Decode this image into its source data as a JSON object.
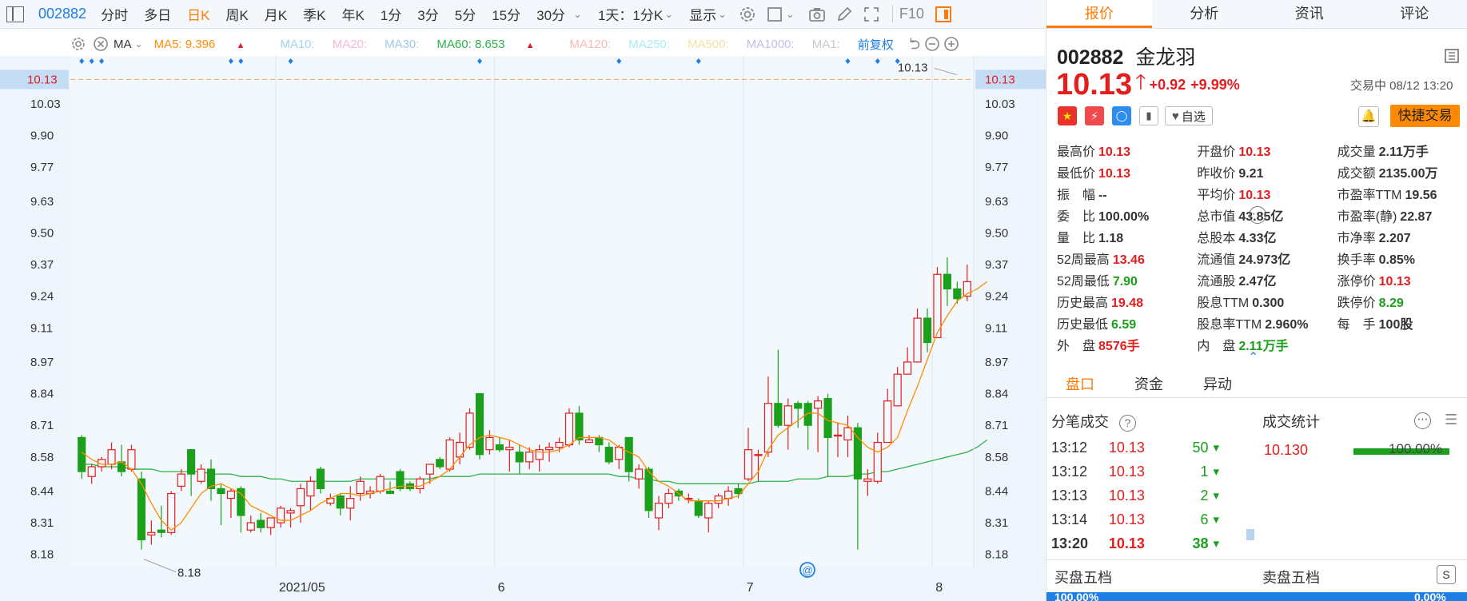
{
  "toolbar": {
    "code": "002882",
    "tabs": [
      "分时",
      "多日",
      "日K",
      "周K",
      "月K",
      "季K",
      "年K",
      "1分",
      "3分",
      "5分",
      "15分",
      "30分"
    ],
    "active_tab": "日K",
    "period_select": "1天：1分K",
    "display": "显示",
    "f10": "F10"
  },
  "ma_bar": {
    "type": "MA",
    "ma5": "MA5: 9.396",
    "ma10": "MA10:",
    "ma20": "MA20:",
    "ma30": "MA30:",
    "ma60": "MA60: 8.653",
    "ma120": "MA120:",
    "ma250": "MA250:",
    "ma500": "MA500:",
    "ma1000": "MA1000:",
    "ma1": "MA1:",
    "adjust": "前复权"
  },
  "chart_data": {
    "type": "candlestick",
    "title": "",
    "ylim": [
      8.12,
      10.22
    ],
    "y_ticks": [
      "10.13",
      "10.03",
      "9.90",
      "9.77",
      "9.63",
      "9.50",
      "9.37",
      "9.24",
      "9.11",
      "8.97",
      "8.84",
      "8.71",
      "8.58",
      "8.44",
      "8.31",
      "8.18"
    ],
    "x_labels": [
      "2021/05",
      "6",
      "7",
      "8"
    ],
    "last_price": "10.13",
    "high_label": "10.13",
    "low_label": "8.18",
    "candles": [
      [
        8.66,
        8.52,
        8.67,
        8.49
      ],
      [
        8.5,
        8.54,
        8.55,
        8.47
      ],
      [
        8.54,
        8.57,
        8.58,
        8.52
      ],
      [
        8.55,
        8.61,
        8.64,
        8.53
      ],
      [
        8.56,
        8.52,
        8.63,
        8.5
      ],
      [
        8.53,
        8.61,
        8.63,
        8.52
      ],
      [
        8.49,
        8.24,
        8.52,
        8.2
      ],
      [
        8.26,
        8.27,
        8.32,
        8.22
      ],
      [
        8.28,
        8.27,
        8.38,
        8.25
      ],
      [
        8.27,
        8.43,
        8.44,
        8.26
      ],
      [
        8.46,
        8.51,
        8.53,
        8.44
      ],
      [
        8.61,
        8.51,
        8.61,
        8.42
      ],
      [
        8.48,
        8.53,
        8.55,
        8.47
      ],
      [
        8.53,
        8.45,
        8.57,
        8.4
      ],
      [
        8.45,
        8.43,
        8.47,
        8.3
      ],
      [
        8.41,
        8.44,
        8.45,
        8.33
      ],
      [
        8.45,
        8.34,
        8.46,
        8.27
      ],
      [
        8.28,
        8.31,
        8.34,
        8.27
      ],
      [
        8.32,
        8.29,
        8.35,
        8.27
      ],
      [
        8.29,
        8.33,
        8.33,
        8.26
      ],
      [
        8.31,
        8.37,
        8.38,
        8.29
      ],
      [
        8.35,
        8.36,
        8.37,
        8.29
      ],
      [
        8.38,
        8.45,
        8.47,
        8.31
      ],
      [
        8.42,
        8.48,
        8.5,
        8.36
      ],
      [
        8.53,
        8.45,
        8.54,
        8.43
      ],
      [
        8.39,
        8.41,
        8.43,
        8.38
      ],
      [
        8.42,
        8.37,
        8.43,
        8.34
      ],
      [
        8.37,
        8.41,
        8.46,
        8.32
      ],
      [
        8.43,
        8.48,
        8.5,
        8.4
      ],
      [
        8.43,
        8.44,
        8.46,
        8.41
      ],
      [
        8.44,
        8.5,
        8.51,
        8.43
      ],
      [
        8.44,
        8.43,
        8.48,
        8.43
      ],
      [
        8.52,
        8.45,
        8.53,
        8.44
      ],
      [
        8.47,
        8.45,
        8.48,
        8.44
      ],
      [
        8.45,
        8.49,
        8.5,
        8.43
      ],
      [
        8.51,
        8.55,
        8.55,
        8.47
      ],
      [
        8.57,
        8.54,
        8.58,
        8.53
      ],
      [
        8.53,
        8.65,
        8.66,
        8.52
      ],
      [
        8.58,
        8.64,
        8.68,
        8.55
      ],
      [
        8.62,
        8.76,
        8.78,
        8.61
      ],
      [
        8.84,
        8.59,
        8.84,
        8.57
      ],
      [
        8.61,
        8.66,
        8.69,
        8.59
      ],
      [
        8.63,
        8.61,
        8.66,
        8.6
      ],
      [
        8.61,
        8.62,
        8.65,
        8.52
      ],
      [
        8.6,
        8.56,
        8.63,
        8.51
      ],
      [
        8.56,
        8.6,
        8.62,
        8.53
      ],
      [
        8.57,
        8.61,
        8.63,
        8.52
      ],
      [
        8.61,
        8.62,
        8.64,
        8.56
      ],
      [
        8.62,
        8.64,
        8.66,
        8.6
      ],
      [
        8.63,
        8.76,
        8.78,
        8.62
      ],
      [
        8.76,
        8.65,
        8.79,
        8.63
      ],
      [
        8.64,
        8.65,
        8.67,
        8.64
      ],
      [
        8.66,
        8.63,
        8.67,
        8.6
      ],
      [
        8.62,
        8.56,
        8.64,
        8.55
      ],
      [
        8.57,
        8.62,
        8.63,
        8.53
      ],
      [
        8.66,
        8.52,
        8.66,
        8.48
      ],
      [
        8.49,
        8.53,
        8.55,
        8.45
      ],
      [
        8.53,
        8.36,
        8.54,
        8.33
      ],
      [
        8.33,
        8.39,
        8.42,
        8.28
      ],
      [
        8.39,
        8.43,
        8.45,
        8.37
      ],
      [
        8.44,
        8.42,
        8.45,
        8.4
      ],
      [
        8.41,
        8.41,
        8.43,
        8.39
      ],
      [
        8.4,
        8.34,
        8.41,
        8.33
      ],
      [
        8.33,
        8.39,
        8.4,
        8.27
      ],
      [
        8.39,
        8.42,
        8.43,
        8.37
      ],
      [
        8.41,
        8.44,
        8.46,
        8.38
      ],
      [
        8.45,
        8.43,
        8.47,
        8.41
      ],
      [
        8.49,
        8.61,
        8.7,
        8.48
      ],
      [
        8.59,
        8.59,
        8.61,
        8.48
      ],
      [
        8.6,
        8.8,
        8.91,
        8.58
      ],
      [
        8.8,
        8.71,
        9.02,
        8.7
      ],
      [
        8.71,
        8.79,
        8.82,
        8.61
      ],
      [
        8.8,
        8.78,
        8.81,
        8.7
      ],
      [
        8.8,
        8.71,
        8.81,
        8.61
      ],
      [
        8.78,
        8.81,
        8.83,
        8.6
      ],
      [
        8.82,
        8.66,
        8.84,
        8.5
      ],
      [
        8.67,
        8.67,
        8.72,
        8.58
      ],
      [
        8.65,
        8.7,
        8.75,
        8.58
      ],
      [
        8.7,
        8.49,
        8.72,
        8.2
      ],
      [
        8.48,
        8.49,
        8.53,
        8.42
      ],
      [
        8.48,
        8.64,
        8.68,
        8.47
      ],
      [
        8.64,
        8.81,
        8.86,
        8.64
      ],
      [
        8.79,
        8.92,
        8.95,
        8.79
      ],
      [
        8.92,
        8.97,
        9.03,
        8.92
      ],
      [
        8.97,
        9.15,
        9.19,
        8.97
      ],
      [
        9.15,
        9.05,
        9.19,
        9.01
      ],
      [
        9.07,
        9.33,
        9.36,
        9.07
      ],
      [
        9.33,
        9.27,
        9.4,
        9.2
      ],
      [
        9.27,
        9.23,
        9.3,
        9.21
      ],
      [
        9.24,
        9.3,
        9.37,
        9.22
      ]
    ],
    "ma5": [
      8.6,
      8.57,
      8.55,
      8.55,
      8.56,
      8.53,
      8.47,
      8.39,
      8.32,
      8.28,
      8.31,
      8.37,
      8.43,
      8.46,
      8.47,
      8.45,
      8.43,
      8.38,
      8.36,
      8.34,
      8.32,
      8.32,
      8.34,
      8.36,
      8.39,
      8.41,
      8.43,
      8.43,
      8.42,
      8.43,
      8.44,
      8.45,
      8.46,
      8.46,
      8.46,
      8.48,
      8.5,
      8.53,
      8.58,
      8.63,
      8.66,
      8.67,
      8.66,
      8.65,
      8.63,
      8.61,
      8.6,
      8.6,
      8.61,
      8.63,
      8.66,
      8.66,
      8.66,
      8.65,
      8.62,
      8.6,
      8.58,
      8.52,
      8.48,
      8.46,
      8.43,
      8.4,
      8.4,
      8.4,
      8.4,
      8.41,
      8.42,
      8.47,
      8.52,
      8.61,
      8.67,
      8.7,
      8.73,
      8.76,
      8.76,
      8.73,
      8.72,
      8.71,
      8.66,
      8.62,
      8.6,
      8.62,
      8.66,
      8.77,
      8.87,
      8.98,
      9.09,
      9.16,
      9.22,
      9.25,
      9.27,
      9.3
    ],
    "ma60": [
      8.55,
      8.55,
      8.54,
      8.54,
      8.54,
      8.53,
      8.53,
      8.53,
      8.52,
      8.52,
      8.52,
      8.52,
      8.52,
      8.51,
      8.51,
      8.51,
      8.5,
      8.5,
      8.5,
      8.49,
      8.49,
      8.48,
      8.48,
      8.48,
      8.48,
      8.48,
      8.48,
      8.48,
      8.49,
      8.49,
      8.49,
      8.49,
      8.49,
      8.49,
      8.49,
      8.49,
      8.5,
      8.5,
      8.5,
      8.5,
      8.51,
      8.51,
      8.51,
      8.51,
      8.51,
      8.51,
      8.51,
      8.51,
      8.51,
      8.51,
      8.51,
      8.51,
      8.51,
      8.51,
      8.5,
      8.5,
      8.49,
      8.49,
      8.48,
      8.48,
      8.47,
      8.47,
      8.47,
      8.47,
      8.47,
      8.47,
      8.47,
      8.47,
      8.48,
      8.48,
      8.48,
      8.48,
      8.49,
      8.49,
      8.49,
      8.5,
      8.5,
      8.5,
      8.51,
      8.51,
      8.52,
      8.52,
      8.53,
      8.54,
      8.55,
      8.56,
      8.57,
      8.58,
      8.59,
      8.6,
      8.62,
      8.65
    ]
  },
  "quote": {
    "code": "002882",
    "name": "金龙羽",
    "price": "10.13",
    "change": "+0.92",
    "change_pct": "+9.99%",
    "status": "交易中 08/12 13:20",
    "watch_label": "自选",
    "quick_trade": "快捷交易",
    "grid": [
      [
        [
          "最高价",
          "10.13",
          "red"
        ],
        [
          "开盘价",
          "10.13",
          "red"
        ],
        [
          "成交量",
          "2.11万手",
          ""
        ]
      ],
      [
        [
          "最低价",
          "10.13",
          "red"
        ],
        [
          "昨收价",
          "9.21",
          ""
        ],
        [
          "成交额",
          "2135.00万",
          ""
        ]
      ],
      [
        [
          "振　幅",
          "--",
          ""
        ],
        [
          "平均价",
          "10.13",
          "red"
        ],
        [
          "市盈率TTM",
          "19.56",
          ""
        ]
      ],
      [
        [
          "委　比",
          "100.00%",
          ""
        ],
        [
          "总市值",
          "43.85亿",
          ""
        ],
        [
          "市盈率(静)",
          "22.87",
          ""
        ]
      ],
      [
        [
          "量　比",
          "1.18",
          ""
        ],
        [
          "总股本",
          "4.33亿",
          ""
        ],
        [
          "市净率",
          "2.207",
          ""
        ]
      ],
      [
        [
          "52周最高",
          "13.46",
          "red"
        ],
        [
          "流通值",
          "24.973亿",
          ""
        ],
        [
          "换手率",
          "0.85%",
          ""
        ]
      ],
      [
        [
          "52周最低",
          "7.90",
          "green"
        ],
        [
          "流通股",
          "2.47亿",
          ""
        ],
        [
          "涨停价",
          "10.13",
          "red"
        ]
      ],
      [
        [
          "历史最高",
          "19.48",
          "red"
        ],
        [
          "股息TTM",
          "0.300",
          ""
        ],
        [
          "跌停价",
          "8.29",
          "green"
        ]
      ],
      [
        [
          "历史最低",
          "6.59",
          "green"
        ],
        [
          "股息率TTM",
          "2.960%",
          ""
        ],
        [
          "每　手",
          "100股",
          ""
        ]
      ],
      [
        [
          "外　盘",
          "8576手",
          "red"
        ],
        [
          "内　盘",
          "2.11万手",
          "green"
        ],
        [
          "",
          "",
          " "
        ]
      ]
    ]
  },
  "subtabs": [
    "盘口",
    "资金",
    "异动"
  ],
  "trades": {
    "title": "分笔成交",
    "rows": [
      [
        "13:12",
        "10.13",
        "50"
      ],
      [
        "13:12",
        "10.13",
        "1"
      ],
      [
        "13:13",
        "10.13",
        "2"
      ],
      [
        "13:14",
        "10.13",
        "6"
      ],
      [
        "13:20",
        "10.13",
        "38"
      ]
    ]
  },
  "stats": {
    "title": "成交统计",
    "price": "10.130",
    "pct": "100.00%"
  },
  "orderbook": {
    "buy": "买盘五档",
    "sell": "卖盘五档",
    "buy_pct": "100.00%",
    "sell_pct": "0.00%"
  },
  "right_tabs": [
    "报价",
    "分析",
    "资讯",
    "评论"
  ],
  "colors": {
    "up": "#e41d1d",
    "down": "#1aa01a",
    "accent": "#ff7a00",
    "ma5": "#ff8c00",
    "ma60": "#2db34a",
    "blue": "#1e7fe6"
  }
}
